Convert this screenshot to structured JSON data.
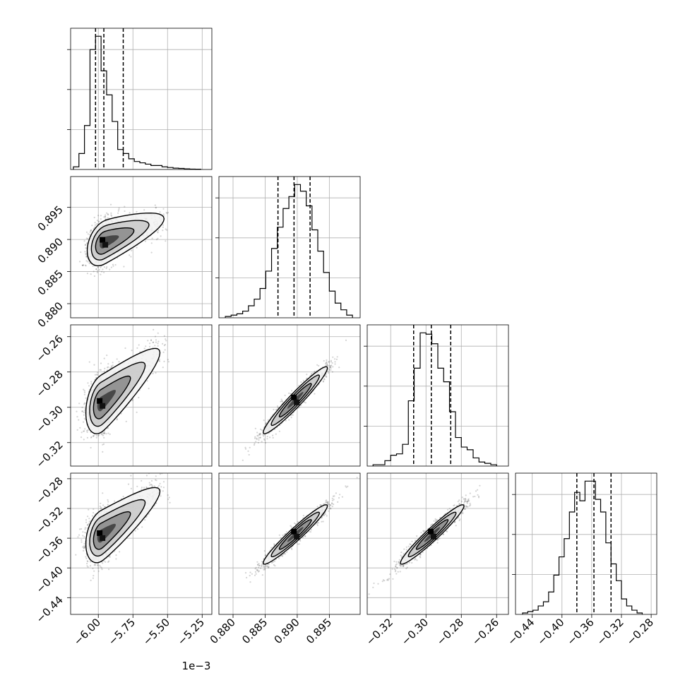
{
  "chart_data": {
    "type": "corner",
    "parameters": 4,
    "quantile_markers": "dashed",
    "grid": true,
    "axes": [
      {
        "index": 0,
        "range": [
          -6.2,
          -5.18
        ],
        "ticks": [
          -6.0,
          -5.75,
          -5.5,
          -5.25
        ],
        "tick_labels": [
          "−6.00",
          "−5.75",
          "−5.50",
          "−5.25"
        ],
        "offset_label": "1e−3"
      },
      {
        "index": 1,
        "range": [
          0.8778,
          0.8998
        ],
        "ticks": [
          0.88,
          0.885,
          0.89,
          0.895
        ],
        "tick_labels": [
          "0.880",
          "0.885",
          "0.890",
          "0.895"
        ]
      },
      {
        "index": 2,
        "range": [
          -0.3333,
          -0.2533
        ],
        "ticks": [
          -0.32,
          -0.3,
          -0.28,
          -0.26
        ],
        "tick_labels": [
          "−0.32",
          "−0.30",
          "−0.28",
          "−0.26"
        ]
      },
      {
        "index": 3,
        "range": [
          -0.4625,
          -0.2725
        ],
        "ticks": [
          -0.44,
          -0.4,
          -0.36,
          -0.32,
          -0.28
        ],
        "tick_labels": [
          "−0.44",
          "−0.40",
          "−0.36",
          "−0.32",
          "−0.28"
        ]
      }
    ],
    "histograms": [
      {
        "param": 0,
        "bin_edges": [
          -6.18,
          -6.14,
          -6.1,
          -6.06,
          -6.02,
          -5.98,
          -5.94,
          -5.9,
          -5.86,
          -5.82,
          -5.78,
          -5.74,
          -5.7,
          -5.66,
          -5.62,
          -5.58,
          -5.54,
          -5.5,
          -5.46,
          -5.42,
          -5.38,
          -5.34,
          -5.3,
          -5.26
        ],
        "counts": [
          0.02,
          0.12,
          0.33,
          0.9,
          1.0,
          0.74,
          0.56,
          0.36,
          0.15,
          0.12,
          0.08,
          0.06,
          0.05,
          0.04,
          0.03,
          0.03,
          0.02,
          0.015,
          0.01,
          0.008,
          0.005,
          0.003,
          0.002
        ],
        "quantiles": [
          -6.02,
          -5.96,
          -5.82
        ]
      },
      {
        "param": 1,
        "bin_edges": [
          0.8788,
          0.8797,
          0.8806,
          0.8815,
          0.8824,
          0.8833,
          0.8842,
          0.8851,
          0.886,
          0.8869,
          0.8878,
          0.8887,
          0.8896,
          0.8905,
          0.8914,
          0.8923,
          0.8932,
          0.8941,
          0.895,
          0.8959,
          0.8968,
          0.8977,
          0.8986
        ],
        "counts": [
          0.01,
          0.02,
          0.03,
          0.05,
          0.09,
          0.14,
          0.22,
          0.35,
          0.52,
          0.68,
          0.82,
          0.91,
          1.0,
          0.95,
          0.84,
          0.66,
          0.5,
          0.34,
          0.2,
          0.11,
          0.06,
          0.02
        ],
        "quantiles": [
          0.887,
          0.8895,
          0.892
        ]
      },
      {
        "param": 2,
        "bin_edges": [
          -0.33,
          -0.3267,
          -0.3233,
          -0.32,
          -0.3167,
          -0.3133,
          -0.31,
          -0.3067,
          -0.3033,
          -0.3,
          -0.2967,
          -0.2933,
          -0.29,
          -0.2867,
          -0.2833,
          -0.28,
          -0.2767,
          -0.2733,
          -0.27,
          -0.2667,
          -0.2633,
          -0.26
        ],
        "counts": [
          0.01,
          0.01,
          0.04,
          0.08,
          0.09,
          0.16,
          0.48,
          0.72,
          0.98,
          0.97,
          0.9,
          0.72,
          0.62,
          0.4,
          0.21,
          0.14,
          0.12,
          0.06,
          0.03,
          0.02,
          0.01
        ],
        "quantiles": [
          -0.307,
          -0.297,
          -0.286
        ]
      },
      {
        "param": 3,
        "bin_edges": [
          -0.453,
          -0.446,
          -0.439,
          -0.432,
          -0.425,
          -0.418,
          -0.411,
          -0.404,
          -0.397,
          -0.39,
          -0.383,
          -0.376,
          -0.369,
          -0.362,
          -0.355,
          -0.348,
          -0.341,
          -0.334,
          -0.327,
          -0.32,
          -0.313,
          -0.306,
          -0.299,
          -0.292
        ],
        "counts": [
          0.01,
          0.02,
          0.03,
          0.06,
          0.09,
          0.16,
          0.28,
          0.41,
          0.54,
          0.73,
          0.87,
          0.81,
          0.95,
          0.95,
          0.82,
          0.73,
          0.51,
          0.36,
          0.24,
          0.11,
          0.06,
          0.03,
          0.01
        ],
        "quantiles": [
          -0.38,
          -0.357,
          -0.334
        ]
      }
    ],
    "joint": [
      {
        "x": 0,
        "y": 1,
        "mean": [
          -5.96,
          0.8895
        ],
        "sd": [
          0.06,
          0.0018
        ],
        "corr": 0.35,
        "tail_dir": [
          0.45,
          0.0035
        ]
      },
      {
        "x": 0,
        "y": 2,
        "mean": [
          -5.98,
          -0.298
        ],
        "sd": [
          0.055,
          0.0085
        ],
        "corr": 0.3,
        "tail_dir": [
          0.45,
          0.034
        ]
      },
      {
        "x": 0,
        "y": 3,
        "mean": [
          -5.98,
          -0.357
        ],
        "sd": [
          0.055,
          0.018
        ],
        "corr": 0.3,
        "tail_dir": [
          0.45,
          0.07
        ]
      },
      {
        "x": 1,
        "y": 2,
        "mean": [
          0.8897,
          -0.296
        ],
        "sd": [
          0.0025,
          0.0095
        ],
        "corr": 0.96
      },
      {
        "x": 1,
        "y": 3,
        "mean": [
          0.8897,
          -0.355
        ],
        "sd": [
          0.0025,
          0.02
        ],
        "corr": 0.96
      },
      {
        "x": 2,
        "y": 3,
        "mean": [
          -0.2965,
          -0.355
        ],
        "sd": [
          0.009,
          0.02
        ],
        "corr": 0.96
      }
    ]
  }
}
